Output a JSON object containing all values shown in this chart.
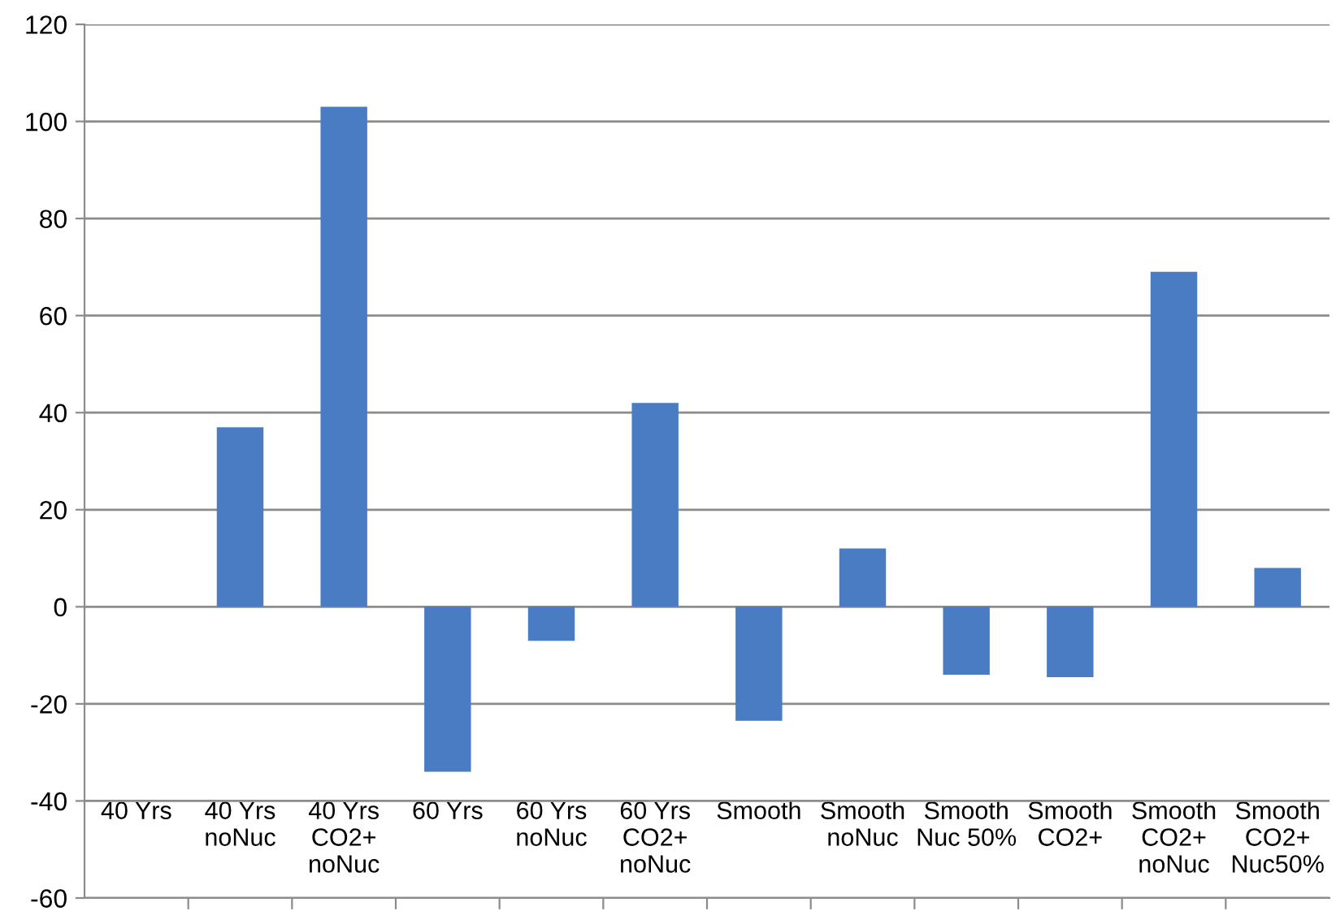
{
  "chart_data": {
    "type": "bar",
    "categories": [
      "40 Yrs",
      "40 Yrs\nnoNuc",
      "40 Yrs\nCO2+\nnoNuc",
      "60 Yrs",
      "60 Yrs\nnoNuc",
      "60 Yrs\nCO2+\nnoNuc",
      "Smooth",
      "Smooth\nnoNuc",
      "Smooth\nNuc 50%",
      "Smooth\nCO2+",
      "Smooth\nCO2+\nnoNuc",
      "Smooth\nCO2+\nNuc50%"
    ],
    "values": [
      0,
      37,
      103,
      -34,
      -7,
      42,
      -23.5,
      12,
      -14,
      -14.5,
      69,
      8
    ],
    "color": "#4a7cc4",
    "ylim": [
      -60,
      120
    ],
    "yticks": [
      -60,
      -40,
      -20,
      0,
      20,
      40,
      60,
      80,
      100,
      120
    ],
    "grid": "y"
  }
}
